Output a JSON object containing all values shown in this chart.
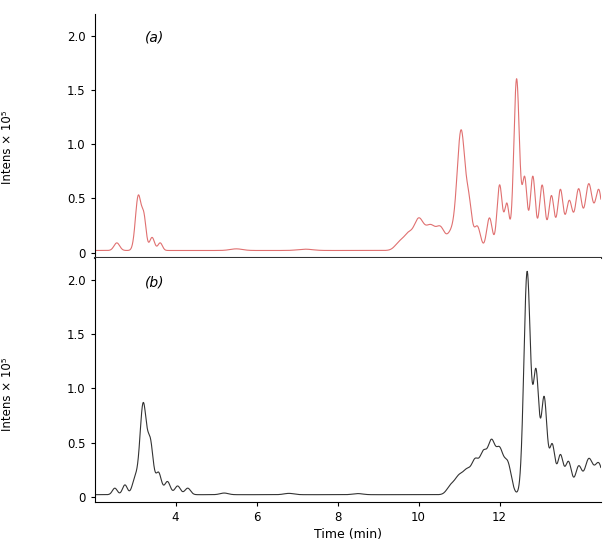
{
  "title_a": "(a)",
  "title_b": "(b)",
  "ylabel_top": "Intens × 10⁵",
  "ylabel_bottom": "Intens × 10⁵",
  "xlabel": "Time (min)",
  "xlim": [
    2.0,
    14.5
  ],
  "ylim_a": [
    -0.05,
    2.2
  ],
  "ylim_b": [
    -0.05,
    2.2
  ],
  "yticks": [
    0.0,
    0.5,
    1.0,
    1.5,
    2.0
  ],
  "ytick_labels": [
    "0",
    "0.5",
    "1.0",
    "1.5",
    "2.0"
  ],
  "xticks": [
    4,
    6,
    8,
    10,
    12
  ],
  "xtick_labels": [
    "4",
    "6",
    "8",
    "10",
    "12"
  ],
  "color_a": "#e07070",
  "color_b": "#333333",
  "background": "#ffffff",
  "linewidth": 0.8,
  "figsize": [
    6.1,
    5.55
  ],
  "dpi": 100
}
